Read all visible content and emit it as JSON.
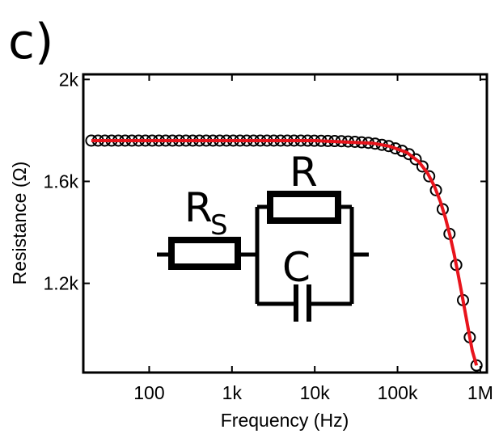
{
  "panel_label": "c)",
  "colors": {
    "fit_line": "#e8141c",
    "markers": "#000000",
    "axes": "#000000"
  },
  "chart_data": {
    "type": "scatter",
    "xlabel": "Frequency (Hz)",
    "ylabel": "Resistance (Ω)",
    "x_scale": "log",
    "xlim": [
      16,
      1200000
    ],
    "ylim": [
      850,
      2020
    ],
    "x_ticks": [
      {
        "value": 100,
        "label": "100"
      },
      {
        "value": 1000,
        "label": "1k"
      },
      {
        "value": 10000,
        "label": "10k"
      },
      {
        "value": 100000,
        "label": "100k"
      },
      {
        "value": 1000000,
        "label": "1M"
      }
    ],
    "y_ticks": [
      {
        "value": 1200,
        "label": "1.2k"
      },
      {
        "value": 1600,
        "label": "1.6k"
      },
      {
        "value": 2000,
        "label": "2k"
      }
    ],
    "series": [
      {
        "kind": "markers",
        "x": [
          20,
          30,
          50,
          80,
          130,
          200,
          320,
          500,
          800,
          1300,
          2000,
          3200,
          5000,
          8000,
          13000,
          20000,
          32000,
          50000,
          80000,
          130000,
          180000,
          230000,
          280000,
          330000,
          380000,
          430000,
          480000,
          530000,
          590000,
          650000,
          720000,
          800000,
          900000
        ],
        "y": [
          1760,
          1760,
          1760,
          1760,
          1760,
          1760,
          1760,
          1760,
          1760,
          1760,
          1760,
          1760,
          1760,
          1760,
          1759,
          1758,
          1755,
          1750,
          1738,
          1713,
          1678,
          1633,
          1580,
          1520,
          1455,
          1387,
          1318,
          1248,
          1170,
          1095,
          1015,
          935,
          878
        ]
      },
      {
        "kind": "fit-line",
        "x": [
          20,
          1000,
          10000,
          50000,
          80000,
          130000,
          180000,
          230000,
          280000,
          330000,
          380000,
          430000,
          480000,
          530000,
          590000,
          650000,
          720000,
          800000,
          900000
        ],
        "y": [
          1760,
          1760,
          1760,
          1750,
          1738,
          1713,
          1678,
          1633,
          1580,
          1520,
          1455,
          1387,
          1318,
          1248,
          1170,
          1095,
          1015,
          935,
          878
        ]
      }
    ]
  },
  "circuit": {
    "rs_label": "R",
    "rs_subscript": "S",
    "r_label": "R",
    "c_label": "C"
  }
}
